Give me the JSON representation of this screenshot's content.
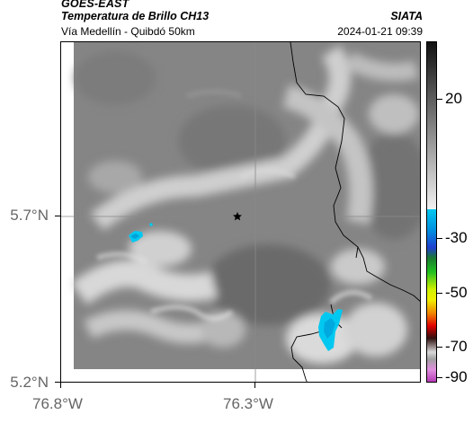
{
  "header": {
    "satellite": "GOES-EAST",
    "product": "Temperatura de Brillo CH13",
    "route": "Vía Medellín - Quibdó 50km",
    "organization": "SIATA",
    "timestamp": "2024-01-21 09:39"
  },
  "axes": {
    "latitude_ticks": [
      "5.7°N",
      "5.2°N"
    ],
    "longitude_ticks": [
      "76.8°W",
      "76.3°W"
    ]
  },
  "map": {
    "marker": "star-icon",
    "colors": {
      "cloud_cold": "#00c8f0",
      "cloud_cold_dark": "#00a0d8",
      "marker": "#000000",
      "grid": "#8a8a8a",
      "coastline": "#000000"
    }
  },
  "colorbar": {
    "labels": [
      "20",
      "-30",
      "-50",
      "-70",
      "-90"
    ],
    "colors": {
      "gray_dark": "#111111",
      "gray_light": "#f2f2f2",
      "cyan": "#00c8f0",
      "blue": "#2040d0",
      "green": "#20c020",
      "yellow": "#f0f000",
      "orange": "#f08000",
      "red": "#e00000",
      "dark": "#202020",
      "magenta": "#c040c0"
    }
  }
}
